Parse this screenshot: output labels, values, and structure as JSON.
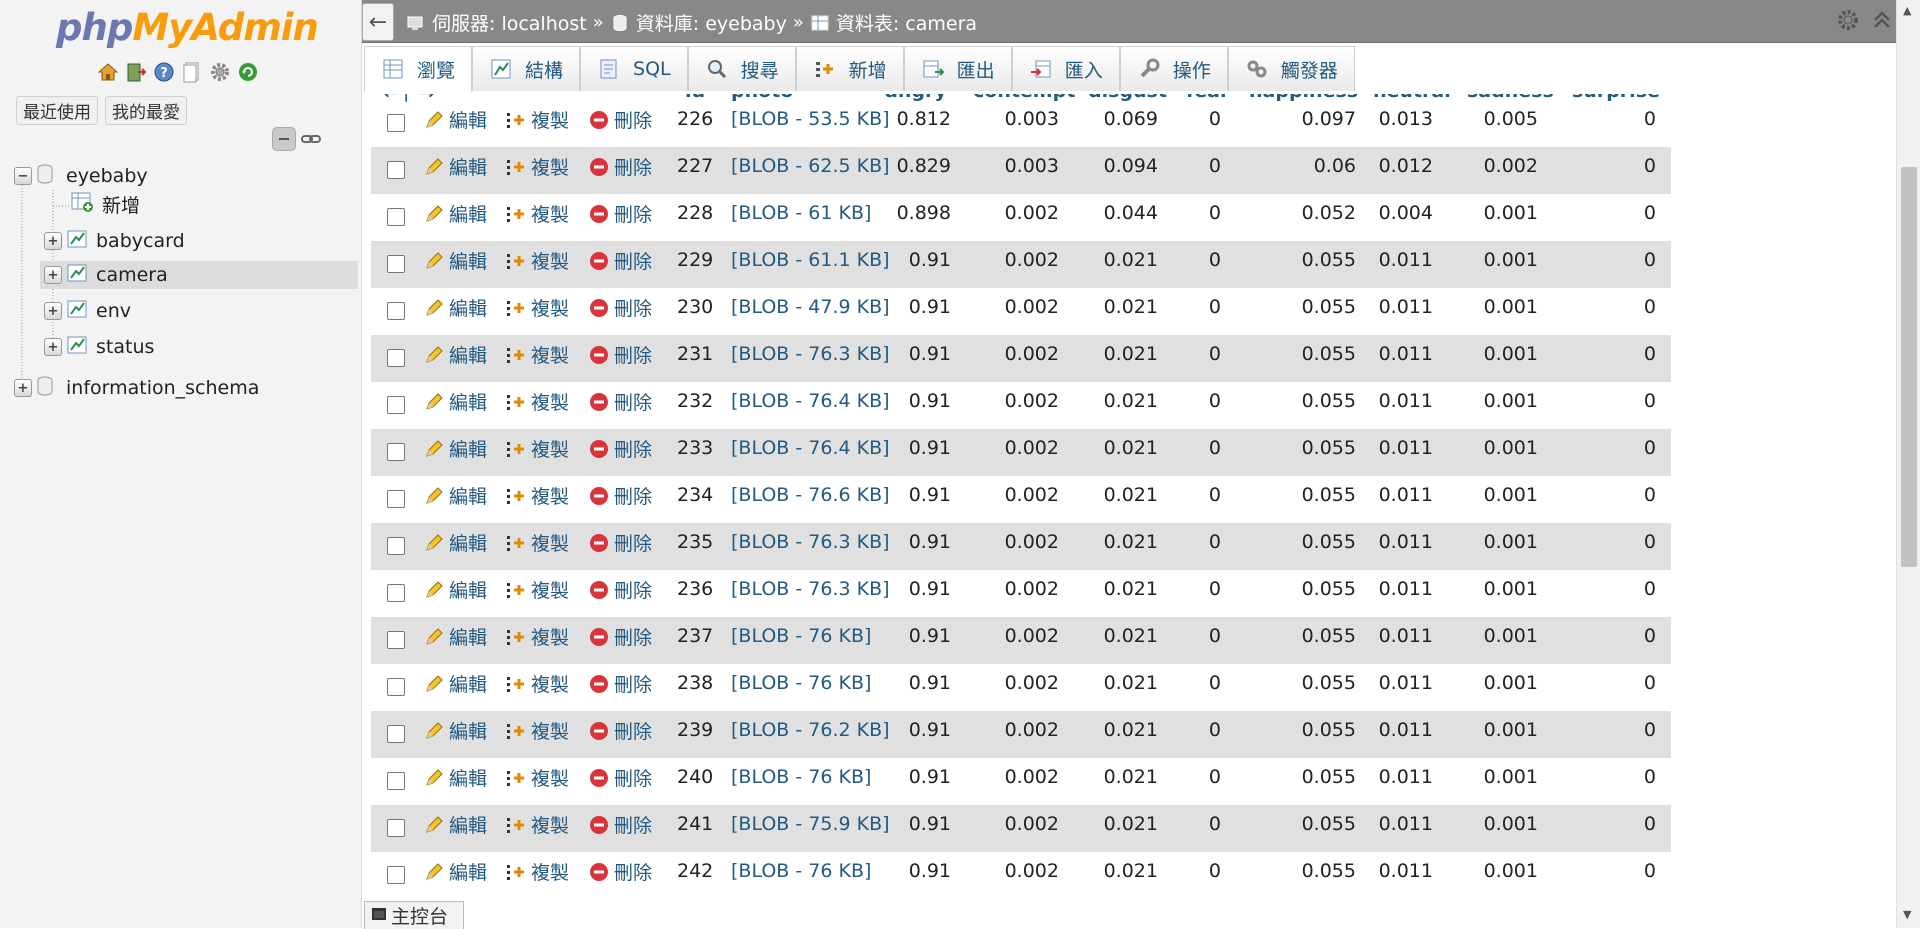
{
  "logo": {
    "part1": "php",
    "part2": "MyAdmin"
  },
  "nav_buttons": {
    "recent": "最近使用",
    "favorites": "我的最愛"
  },
  "tree": {
    "db1": "eyebaby",
    "new": "新增",
    "tables": [
      "babycard",
      "camera",
      "env",
      "status"
    ],
    "db2": "information_schema"
  },
  "breadcrumb": {
    "server": "伺服器: localhost",
    "database": "資料庫: eyebaby",
    "table": "資料表: camera",
    "sep": "»"
  },
  "tabs": [
    "瀏覽",
    "結構",
    "SQL",
    "搜尋",
    "新增",
    "匯出",
    "匯入",
    "操作",
    "觸發器"
  ],
  "columns": [
    "id",
    "photo",
    "angry",
    "contempt",
    "disgust",
    "fear",
    "happiness",
    "neutral",
    "sadness",
    "surprise"
  ],
  "actions": {
    "edit": "編輯",
    "copy": "複製",
    "delete": "刪除"
  },
  "rows": [
    {
      "id": "226",
      "photo": "[BLOB - 53.5 KB]",
      "angry": "0.812",
      "contempt": "0.003",
      "disgust": "0.069",
      "fear": "0",
      "happiness": "0.097",
      "neutral": "0.013",
      "sadness": "0.005",
      "surprise": "0"
    },
    {
      "id": "227",
      "photo": "[BLOB - 62.5 KB]",
      "angry": "0.829",
      "contempt": "0.003",
      "disgust": "0.094",
      "fear": "0",
      "happiness": "0.06",
      "neutral": "0.012",
      "sadness": "0.002",
      "surprise": "0"
    },
    {
      "id": "228",
      "photo": "[BLOB - 61 KB]",
      "angry": "0.898",
      "contempt": "0.002",
      "disgust": "0.044",
      "fear": "0",
      "happiness": "0.052",
      "neutral": "0.004",
      "sadness": "0.001",
      "surprise": "0"
    },
    {
      "id": "229",
      "photo": "[BLOB - 61.1 KB]",
      "angry": "0.91",
      "contempt": "0.002",
      "disgust": "0.021",
      "fear": "0",
      "happiness": "0.055",
      "neutral": "0.011",
      "sadness": "0.001",
      "surprise": "0"
    },
    {
      "id": "230",
      "photo": "[BLOB - 47.9 KB]",
      "angry": "0.91",
      "contempt": "0.002",
      "disgust": "0.021",
      "fear": "0",
      "happiness": "0.055",
      "neutral": "0.011",
      "sadness": "0.001",
      "surprise": "0"
    },
    {
      "id": "231",
      "photo": "[BLOB - 76.3 KB]",
      "angry": "0.91",
      "contempt": "0.002",
      "disgust": "0.021",
      "fear": "0",
      "happiness": "0.055",
      "neutral": "0.011",
      "sadness": "0.001",
      "surprise": "0"
    },
    {
      "id": "232",
      "photo": "[BLOB - 76.4 KB]",
      "angry": "0.91",
      "contempt": "0.002",
      "disgust": "0.021",
      "fear": "0",
      "happiness": "0.055",
      "neutral": "0.011",
      "sadness": "0.001",
      "surprise": "0"
    },
    {
      "id": "233",
      "photo": "[BLOB - 76.4 KB]",
      "angry": "0.91",
      "contempt": "0.002",
      "disgust": "0.021",
      "fear": "0",
      "happiness": "0.055",
      "neutral": "0.011",
      "sadness": "0.001",
      "surprise": "0"
    },
    {
      "id": "234",
      "photo": "[BLOB - 76.6 KB]",
      "angry": "0.91",
      "contempt": "0.002",
      "disgust": "0.021",
      "fear": "0",
      "happiness": "0.055",
      "neutral": "0.011",
      "sadness": "0.001",
      "surprise": "0"
    },
    {
      "id": "235",
      "photo": "[BLOB - 76.3 KB]",
      "angry": "0.91",
      "contempt": "0.002",
      "disgust": "0.021",
      "fear": "0",
      "happiness": "0.055",
      "neutral": "0.011",
      "sadness": "0.001",
      "surprise": "0"
    },
    {
      "id": "236",
      "photo": "[BLOB - 76.3 KB]",
      "angry": "0.91",
      "contempt": "0.002",
      "disgust": "0.021",
      "fear": "0",
      "happiness": "0.055",
      "neutral": "0.011",
      "sadness": "0.001",
      "surprise": "0"
    },
    {
      "id": "237",
      "photo": "[BLOB - 76 KB]",
      "angry": "0.91",
      "contempt": "0.002",
      "disgust": "0.021",
      "fear": "0",
      "happiness": "0.055",
      "neutral": "0.011",
      "sadness": "0.001",
      "surprise": "0"
    },
    {
      "id": "238",
      "photo": "[BLOB - 76 KB]",
      "angry": "0.91",
      "contempt": "0.002",
      "disgust": "0.021",
      "fear": "0",
      "happiness": "0.055",
      "neutral": "0.011",
      "sadness": "0.001",
      "surprise": "0"
    },
    {
      "id": "239",
      "photo": "[BLOB - 76.2 KB]",
      "angry": "0.91",
      "contempt": "0.002",
      "disgust": "0.021",
      "fear": "0",
      "happiness": "0.055",
      "neutral": "0.011",
      "sadness": "0.001",
      "surprise": "0"
    },
    {
      "id": "240",
      "photo": "[BLOB - 76 KB]",
      "angry": "0.91",
      "contempt": "0.002",
      "disgust": "0.021",
      "fear": "0",
      "happiness": "0.055",
      "neutral": "0.011",
      "sadness": "0.001",
      "surprise": "0"
    },
    {
      "id": "241",
      "photo": "[BLOB - 75.9 KB]",
      "angry": "0.91",
      "contempt": "0.002",
      "disgust": "0.021",
      "fear": "0",
      "happiness": "0.055",
      "neutral": "0.011",
      "sadness": "0.001",
      "surprise": "0"
    },
    {
      "id": "242",
      "photo": "[BLOB - 76 KB]",
      "angry": "0.91",
      "contempt": "0.002",
      "disgust": "0.021",
      "fear": "0",
      "happiness": "0.055",
      "neutral": "0.011",
      "sadness": "0.001",
      "surprise": "0"
    }
  ],
  "console": "主控台",
  "colors": {
    "link": "#235a81",
    "topbar": "#888888",
    "row_shade": "#e0e0e0",
    "logo_php": "#6c78af",
    "logo_myadmin": "#f89c0e"
  },
  "icons": [
    "home-icon",
    "exit-icon",
    "help-icon",
    "docs-icon",
    "settings-icon",
    "reload-icon",
    "link-icon",
    "collapse-icon",
    "pencil-icon",
    "copy-icon",
    "delete-icon",
    "gear-icon",
    "collapse-top-icon",
    "back-arrow-icon",
    "console-icon"
  ]
}
